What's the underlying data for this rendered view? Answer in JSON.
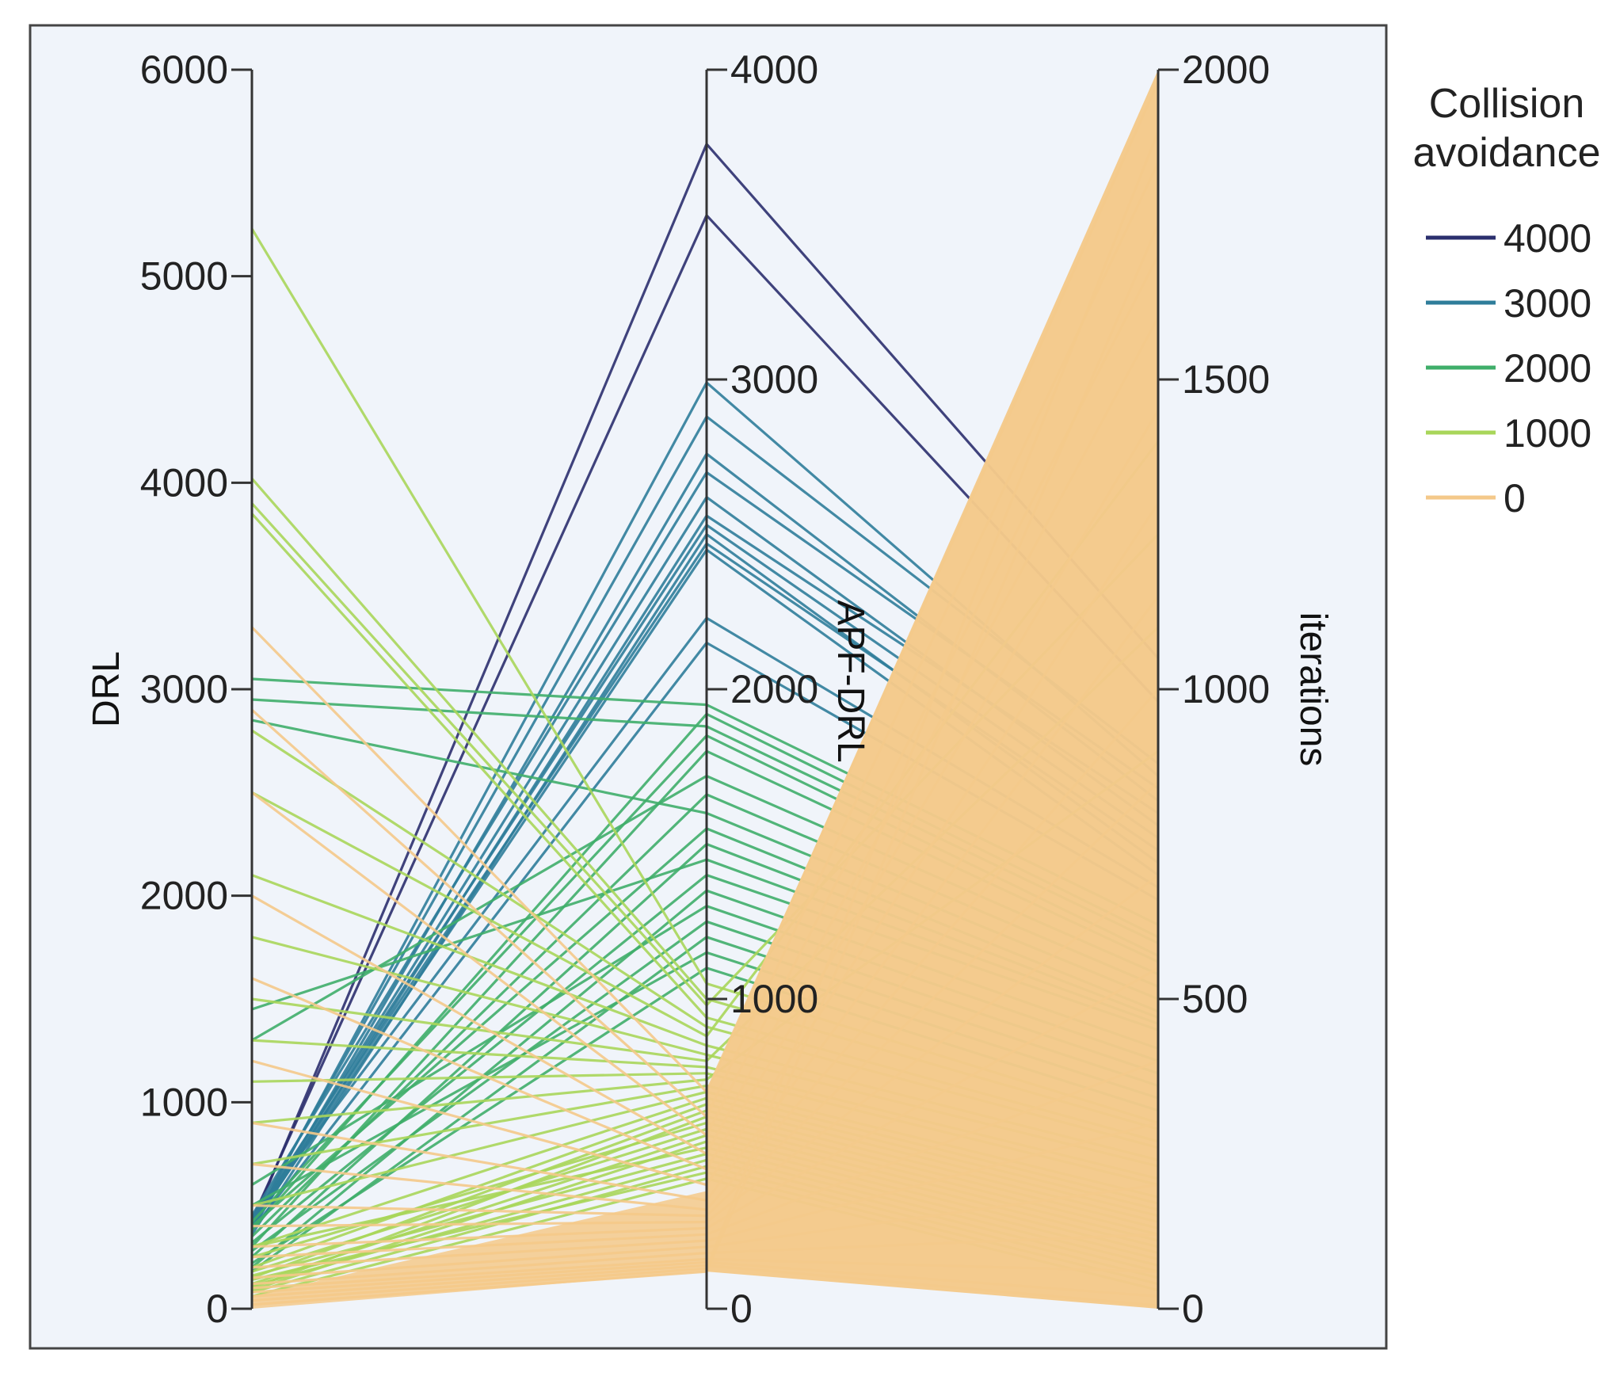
{
  "chart_data": {
    "type": "parallel-coordinates",
    "title": "",
    "axes": [
      {
        "name": "DRL",
        "label": "DRL",
        "min": 0,
        "max": 6000,
        "ticks": [
          "0",
          "1000",
          "2000",
          "3000",
          "4000",
          "5000",
          "6000"
        ]
      },
      {
        "name": "APF-DRL",
        "label": "APF-DRL",
        "min": 0,
        "max": 4000,
        "ticks": [
          "0",
          "1000",
          "2000",
          "3000",
          "4000"
        ]
      },
      {
        "name": "iterations",
        "label": "iterations",
        "min": 0,
        "max": 2000,
        "ticks": [
          "0",
          "500",
          "1000",
          "1500",
          "2000"
        ]
      }
    ],
    "color_variable": "Collision avoidance",
    "legend": {
      "title_lines": [
        "Collision",
        "avoidance"
      ],
      "placement": "right",
      "entries": [
        {
          "label": "4000",
          "color": "#2b2f6e"
        },
        {
          "label": "3000",
          "color": "#2f7d9a"
        },
        {
          "label": "2000",
          "color": "#3fae6a"
        },
        {
          "label": "1000",
          "color": "#a8d65a"
        },
        {
          "label": "0",
          "color": "#f4c98a"
        }
      ]
    },
    "series": [
      {
        "name": "4000",
        "color": "#2b2f6e",
        "lines": [
          [
            410,
            3760,
            1050
          ],
          [
            430,
            3530,
            980
          ]
        ]
      },
      {
        "name": "3000",
        "color": "#2f7d9a",
        "lines": [
          [
            400,
            2990,
            860
          ],
          [
            420,
            2880,
            880
          ],
          [
            380,
            2760,
            820
          ],
          [
            450,
            2700,
            840
          ],
          [
            410,
            2620,
            780
          ],
          [
            390,
            2560,
            800
          ],
          [
            430,
            2530,
            760
          ],
          [
            360,
            2500,
            720
          ],
          [
            420,
            2470,
            740
          ],
          [
            400,
            2450,
            700
          ],
          [
            440,
            2230,
            680
          ],
          [
            380,
            2150,
            660
          ]
        ]
      },
      {
        "name": "2000",
        "color": "#3fae6a",
        "lines": [
          [
            3050,
            1950,
            620
          ],
          [
            380,
            1920,
            600
          ],
          [
            2950,
            1880,
            590
          ],
          [
            420,
            1850,
            570
          ],
          [
            300,
            1800,
            560
          ],
          [
            1300,
            1720,
            540
          ],
          [
            350,
            1660,
            520
          ],
          [
            2850,
            1600,
            500
          ],
          [
            400,
            1550,
            480
          ],
          [
            250,
            1500,
            470
          ],
          [
            1450,
            1450,
            460
          ],
          [
            320,
            1400,
            450
          ],
          [
            200,
            1350,
            420
          ],
          [
            600,
            1300,
            400
          ],
          [
            280,
            1250,
            380
          ],
          [
            180,
            1200,
            360
          ],
          [
            500,
            1150,
            340
          ],
          [
            220,
            1100,
            320
          ]
        ]
      },
      {
        "name": "1000",
        "color": "#a8d65a",
        "lines": [
          [
            5230,
            1050,
            300
          ],
          [
            4020,
            1000,
            290
          ],
          [
            3900,
            980,
            1250
          ],
          [
            3850,
            940,
            270
          ],
          [
            2800,
            910,
            260
          ],
          [
            2500,
            880,
            1400
          ],
          [
            2100,
            850,
            240
          ],
          [
            1800,
            820,
            230
          ],
          [
            1500,
            800,
            1100
          ],
          [
            1300,
            780,
            210
          ],
          [
            1100,
            760,
            200
          ],
          [
            900,
            740,
            900
          ],
          [
            700,
            720,
            180
          ],
          [
            500,
            700,
            170
          ],
          [
            300,
            680,
            160
          ],
          [
            200,
            660,
            150
          ],
          [
            150,
            640,
            140
          ],
          [
            100,
            620,
            130
          ],
          [
            250,
            600,
            120
          ],
          [
            180,
            580,
            110
          ],
          [
            120,
            560,
            100
          ],
          [
            90,
            540,
            90
          ],
          [
            300,
            520,
            80
          ],
          [
            160,
            500,
            70
          ],
          [
            110,
            480,
            60
          ],
          [
            80,
            460,
            50
          ],
          [
            140,
            440,
            40
          ],
          [
            60,
            420,
            30
          ]
        ]
      },
      {
        "name": "0",
        "color": "#f4c98a",
        "lines": [
          [
            3300,
            700,
            1980
          ],
          [
            2900,
            620,
            1850
          ],
          [
            2500,
            560,
            1700
          ],
          [
            2000,
            500,
            1600
          ],
          [
            1600,
            450,
            1450
          ],
          [
            1200,
            400,
            1300
          ],
          [
            900,
            350,
            1150
          ],
          [
            700,
            320,
            1000
          ],
          [
            500,
            300,
            850
          ],
          [
            400,
            280,
            700
          ],
          [
            300,
            260,
            550
          ],
          [
            250,
            240,
            400
          ],
          [
            200,
            220,
            300
          ],
          [
            150,
            200,
            200
          ],
          [
            120,
            180,
            120
          ],
          [
            100,
            160,
            60
          ],
          [
            80,
            150,
            20
          ],
          [
            60,
            140,
            5
          ],
          [
            40,
            130,
            1900
          ],
          [
            20,
            120,
            1750
          ]
        ]
      }
    ]
  }
}
